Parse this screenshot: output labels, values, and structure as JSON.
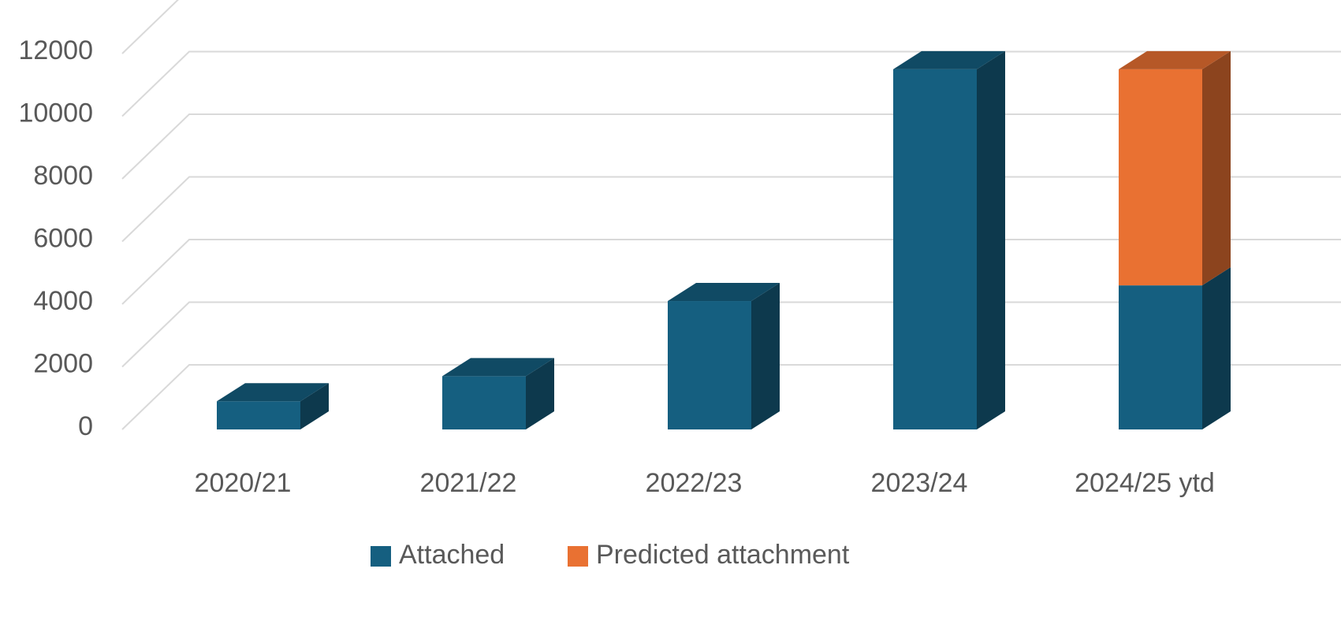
{
  "chart_data": {
    "type": "bar",
    "stacked": true,
    "three_d": true,
    "categories": [
      "2020/21",
      "2021/22",
      "2022/23",
      "2023/24",
      "2024/25 ytd"
    ],
    "series": [
      {
        "name": "Attached",
        "values": [
          900,
          1700,
          4100,
          11500,
          4600
        ]
      },
      {
        "name": "Predicted attachment",
        "values": [
          0,
          0,
          0,
          0,
          6900
        ]
      }
    ],
    "yticks": [
      0,
      2000,
      4000,
      6000,
      8000,
      10000,
      12000
    ],
    "ylim": [
      0,
      12000
    ],
    "grid": true,
    "legend_position": "bottom",
    "colors": {
      "Attached": "#155f80",
      "Predicted attachment": "#e97132",
      "gridline": "#d9d9d9",
      "text": "#595959"
    }
  }
}
